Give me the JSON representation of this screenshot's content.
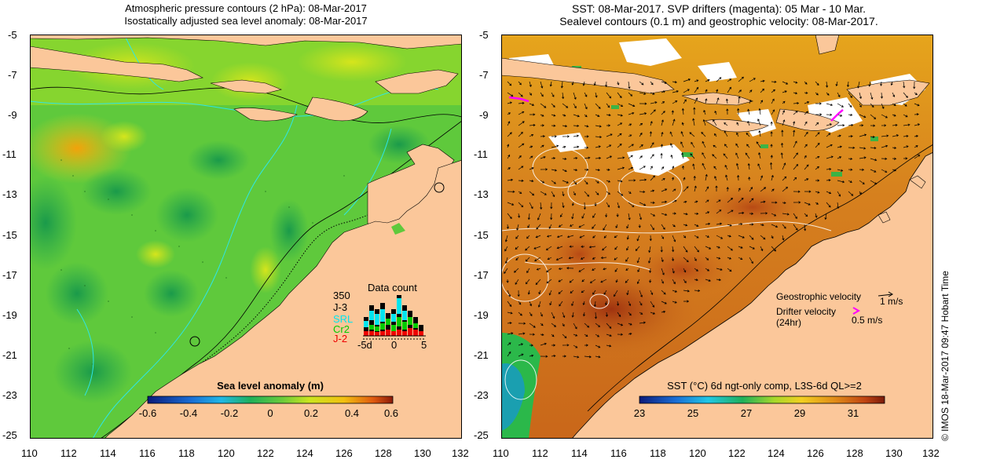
{
  "left_panel": {
    "title_line1": "Atmospheric pressure contours (2 hPa): 08-Mar-2017",
    "title_line2": "Isostatically adjusted sea level anomaly: 08-Mar-2017",
    "y_ticks": [
      "-5",
      "-7",
      "-9",
      "-11",
      "-13",
      "-15",
      "-17",
      "-19",
      "-21",
      "-23",
      "-25"
    ],
    "x_ticks": [
      "110",
      "112",
      "114",
      "116",
      "118",
      "120",
      "122",
      "124",
      "126",
      "128",
      "130",
      "132"
    ],
    "colorbar_title": "Sea level anomaly (m)",
    "colorbar_ticks": [
      "-0.6",
      "-0.4",
      "-0.2",
      "0",
      "0.2",
      "0.4",
      "0.6"
    ],
    "data_count": {
      "title": "Data count",
      "max_label": "350",
      "legend": [
        {
          "label": "J-3",
          "color": "#000000"
        },
        {
          "label": "SRL",
          "color": "#00e5ee"
        },
        {
          "label": "Cr2",
          "color": "#00cc00"
        },
        {
          "label": "J-2",
          "color": "#ee0000"
        }
      ],
      "x_labels": [
        "-5d",
        "0",
        "5"
      ]
    }
  },
  "right_panel": {
    "title_line1": "SST: 08-Mar-2017. SVP drifters (magenta): 05 Mar - 10 Mar.",
    "title_line2": "Sealevel contours (0.1 m) and geostrophic velocity: 08-Mar-2017.",
    "y_ticks": [
      "-5",
      "-7",
      "-9",
      "-11",
      "-13",
      "-15",
      "-17",
      "-19",
      "-21",
      "-23",
      "-25"
    ],
    "x_ticks": [
      "110",
      "112",
      "114",
      "116",
      "118",
      "120",
      "122",
      "124",
      "126",
      "128",
      "130",
      "132"
    ],
    "colorbar_title": "SST (°C) 6d ngt-only comp, L3S-6d QL>=2",
    "colorbar_ticks": [
      "23",
      "25",
      "27",
      "29",
      "31"
    ],
    "legend": {
      "geo_label": "Geostrophic velocity",
      "geo_scale": "1 m/s",
      "drifter_label": "Drifter velocity",
      "drifter_sub": "(24hr)",
      "drifter_scale": "0.5 m/s",
      "drifter_color": "#ff00ff"
    },
    "stamp": "© IMOS 18-Mar-2017 09:47 Hobart Time"
  },
  "colors": {
    "land": "#fbc79a",
    "coast": "#000000"
  }
}
